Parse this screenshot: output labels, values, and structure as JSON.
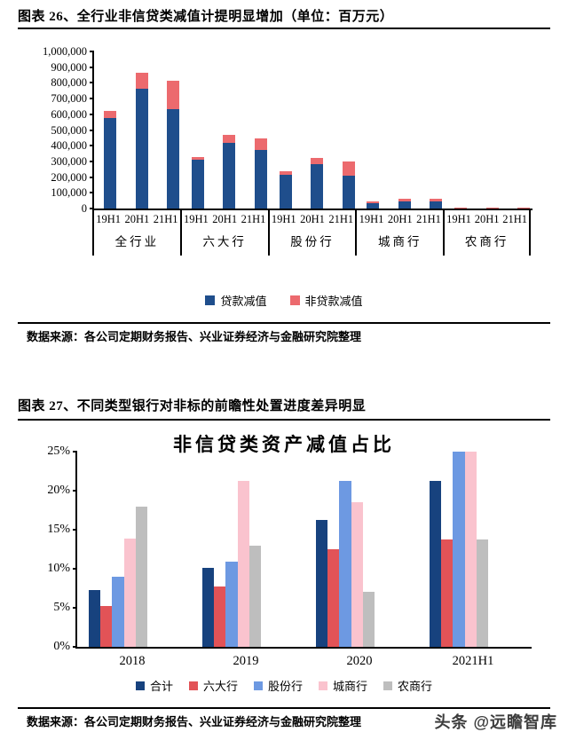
{
  "figure26": {
    "title": "图表 26、全行业非信贷类减值计提明显增加（单位：百万元）",
    "source": "数据来源：各公司定期财务报告、兴业证券经济与金融研究院整理"
  },
  "figure27": {
    "title": "图表 27、不同类型银行对非标的前瞻性处置进度差异明显",
    "source": "数据来源：各公司定期财务报告、兴业证券经济与金融研究院整理"
  },
  "watermark": "头条 @远瞻智库",
  "chart_data": [
    {
      "type": "bar",
      "stacked": true,
      "unit": "百万元",
      "groups": [
        "全行业",
        "六大行",
        "股份行",
        "城商行",
        "农商行"
      ],
      "periods": [
        "19H1",
        "20H1",
        "21H1"
      ],
      "series": [
        {
          "name": "贷款减值",
          "color": "#1F4E8C",
          "values": [
            [
              575000,
              765000,
              635000
            ],
            [
              310000,
              420000,
              375000
            ],
            [
              212000,
              280000,
              210000
            ],
            [
              34000,
              48000,
              45000
            ],
            [
              4000,
              5000,
              5000
            ]
          ]
        },
        {
          "name": "非贷款减值",
          "color": "#EC6A6E",
          "values": [
            [
              45000,
              100000,
              180000
            ],
            [
              20000,
              50000,
              70000
            ],
            [
              23000,
              44000,
              92000
            ],
            [
              12000,
              15000,
              18000
            ],
            [
              1000,
              2000,
              3000
            ]
          ]
        }
      ],
      "ylim": [
        0,
        1000000
      ],
      "yticks": [
        "1,000,000",
        "900,000",
        "800,000",
        "700,000",
        "600,000",
        "500,000",
        "400,000",
        "300,000",
        "200,000",
        "100,000",
        "0"
      ],
      "legend_position": "bottom",
      "grid": false
    },
    {
      "type": "bar",
      "stacked": false,
      "title": "非信贷类资产减值占比",
      "categories": [
        "2018",
        "2019",
        "2020",
        "2021H1"
      ],
      "series": [
        {
          "name": "合计",
          "color": "#17427E",
          "values": [
            7.3,
            10.1,
            16.3,
            21.3
          ]
        },
        {
          "name": "六大行",
          "color": "#E25357",
          "values": [
            5.2,
            7.7,
            12.5,
            13.8
          ]
        },
        {
          "name": "股份行",
          "color": "#6D99E2",
          "values": [
            9.0,
            10.9,
            21.3,
            25.0
          ]
        },
        {
          "name": "城商行",
          "color": "#FAC3CE",
          "values": [
            13.9,
            21.3,
            18.5,
            25.0
          ]
        },
        {
          "name": "农商行",
          "color": "#BEBEBE",
          "values": [
            17.9,
            12.9,
            7.0,
            13.7
          ]
        }
      ],
      "ylim": [
        0,
        25
      ],
      "yticks": [
        "25%",
        "20%",
        "15%",
        "10%",
        "5%",
        "0%"
      ],
      "legend_position": "bottom",
      "grid": false
    }
  ]
}
